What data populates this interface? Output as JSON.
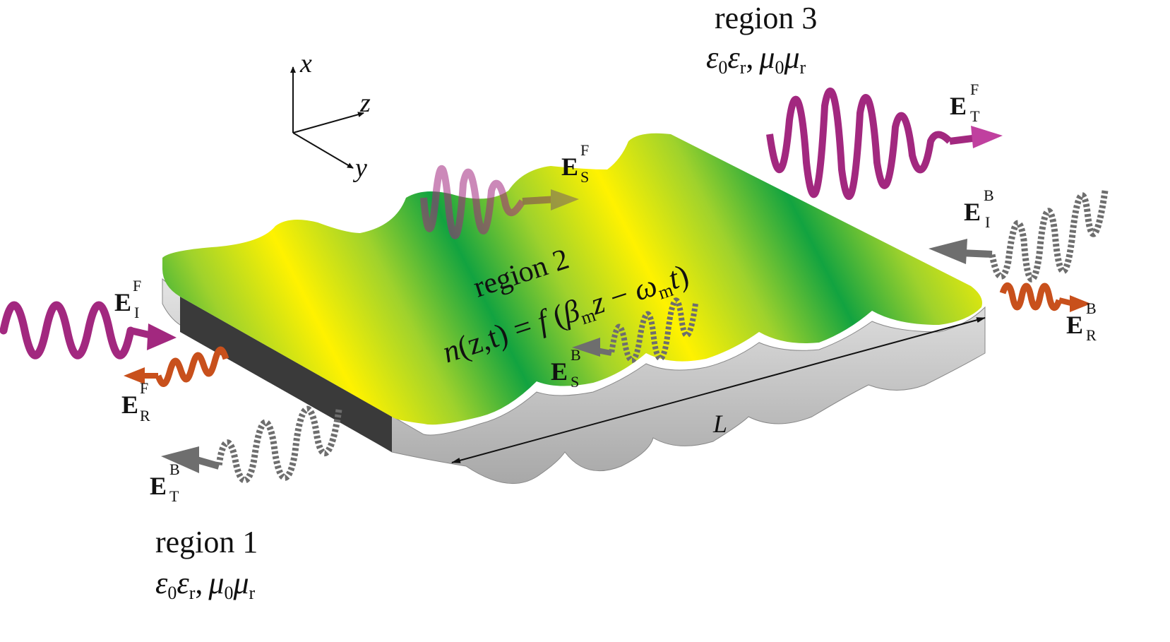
{
  "axes": {
    "x": "x",
    "y": "y",
    "z": "z"
  },
  "regions": {
    "r1": {
      "title": "region 1",
      "eps0": "ε",
      "eps0_sub": "0",
      "epsr": "ε",
      "epsr_sub": "r",
      "comma": ",",
      "mu0": "μ",
      "mu0_sub": "0",
      "mur": "μ",
      "mur_sub": "r"
    },
    "r2": {
      "title": "region 2",
      "eq_n": "n",
      "eq_args": "(z,t) = ",
      "eq_f": "f",
      "eq_open": " (",
      "eq_beta": "β",
      "eq_beta_sub": "m",
      "eq_z": "z",
      "eq_minus": " − ",
      "eq_omega": "ω",
      "eq_omega_sub": "m",
      "eq_t": "t",
      "eq_close": ")"
    },
    "r3": {
      "title": "region 3",
      "eps0": "ε",
      "eps0_sub": "0",
      "epsr": "ε",
      "epsr_sub": "r",
      "comma": ",",
      "mu0": "μ",
      "mu0_sub": "0",
      "mur": "μ",
      "mur_sub": "r"
    }
  },
  "length_label": "L",
  "fields": {
    "E": "E",
    "incident_forward": {
      "sup": "F",
      "sub": "I"
    },
    "reflected_forward": {
      "sup": "F",
      "sub": "R"
    },
    "transmitted_back": {
      "sup": "B",
      "sub": "T"
    },
    "scattered_forward": {
      "sup": "F",
      "sub": "S"
    },
    "scattered_back": {
      "sup": "B",
      "sub": "S"
    },
    "transmitted_forward": {
      "sup": "F",
      "sub": "T"
    },
    "incident_back": {
      "sup": "B",
      "sub": "I"
    },
    "reflected_back": {
      "sup": "B",
      "sub": "R"
    }
  },
  "colors": {
    "slab_green": "#12a340",
    "slab_yellow": "#fff200",
    "slab_side": "#c8c8c8",
    "slab_dark_face": "#3a3a3a",
    "wave_forward": "#a2287f",
    "wave_reflected": "#c8501c",
    "wave_backward": "#6e6e6e"
  }
}
